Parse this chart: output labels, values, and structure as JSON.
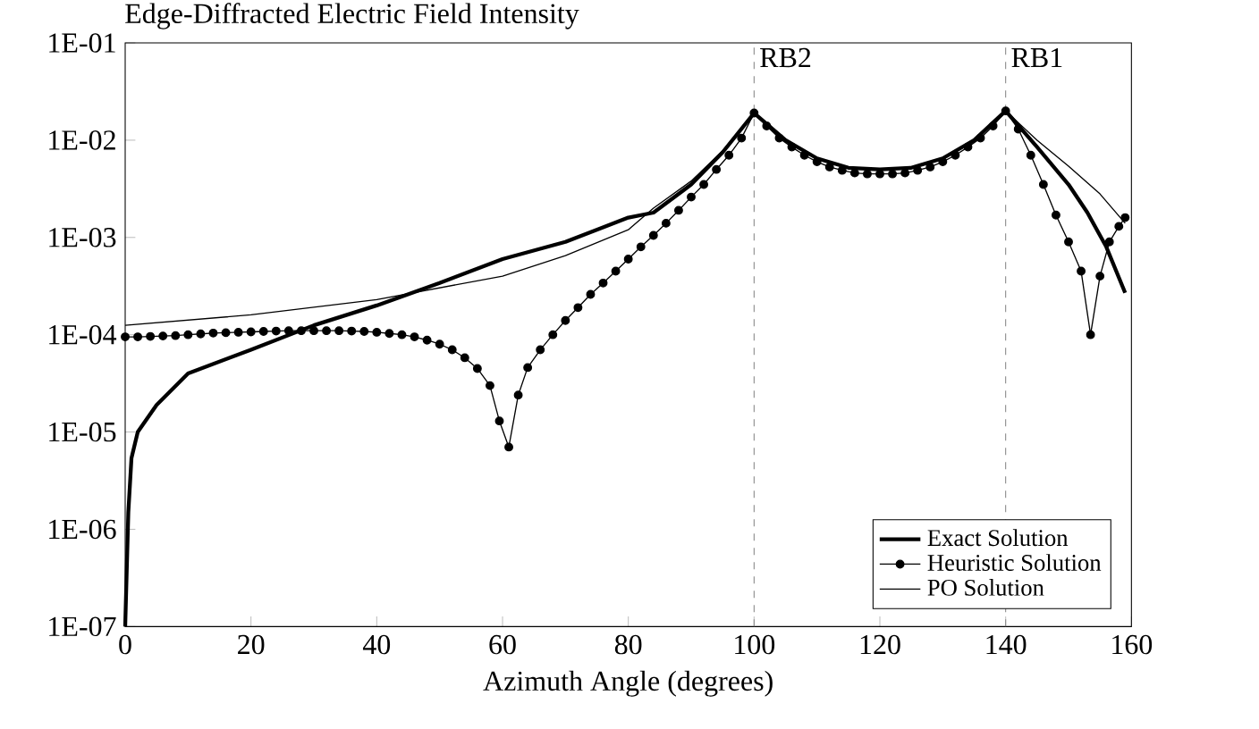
{
  "chart_data": {
    "type": "line",
    "title": "Edge-Diffracted Electric Field Intensity",
    "xlabel": "Azimuth Angle (degrees)",
    "log": "y",
    "xlim": [
      0,
      160
    ],
    "xticks": [
      0,
      20,
      40,
      60,
      80,
      100,
      120,
      140,
      160
    ],
    "ylim": [
      1e-07,
      0.1
    ],
    "yticks": [
      {
        "value": 1e-07,
        "label": "1E-07"
      },
      {
        "value": 1e-06,
        "label": "1E-06"
      },
      {
        "value": 1e-05,
        "label": "1E-05"
      },
      {
        "value": 0.0001,
        "label": "1E-04"
      },
      {
        "value": 0.001,
        "label": "1E-03"
      },
      {
        "value": 0.01,
        "label": "1E-02"
      },
      {
        "value": 0.1,
        "label": "1E-01"
      }
    ],
    "grid": false,
    "legend": "bottom right",
    "line_style": "solid",
    "ref_lines": [
      {
        "axis": "x",
        "value": 100,
        "label": "RB2",
        "color": "#888888",
        "line_style": "dashed"
      },
      {
        "axis": "x",
        "value": 140,
        "label": "RB1",
        "color": "#888888",
        "line_style": "dashed"
      }
    ],
    "series": [
      {
        "name": "Exact Solution",
        "color": "#000000",
        "marker": "none",
        "x": [
          0,
          0.5,
          1,
          2,
          5,
          10,
          20,
          30,
          40,
          50,
          60,
          70,
          80,
          84,
          90,
          95,
          100,
          105,
          110,
          115,
          120,
          125,
          130,
          135,
          140,
          145,
          150,
          153,
          156,
          159
        ],
        "values": [
          1e-07,
          1.5e-06,
          5.4e-06,
          1e-05,
          1.9e-05,
          4e-05,
          7e-05,
          0.000125,
          0.0002,
          0.00034,
          0.0006,
          0.0009,
          0.0016,
          0.0018,
          0.0035,
          0.0075,
          0.019,
          0.01,
          0.0065,
          0.0052,
          0.005,
          0.0052,
          0.0065,
          0.01,
          0.02,
          0.0085,
          0.0035,
          0.0018,
          0.0008,
          0.00027
        ]
      },
      {
        "name": "Heuristic Solution",
        "color": "#000000",
        "marker": "circle",
        "x": [
          0,
          2,
          4,
          6,
          8,
          10,
          12,
          14,
          16,
          18,
          20,
          22,
          24,
          26,
          28,
          30,
          32,
          34,
          36,
          38,
          40,
          42,
          44,
          46,
          48,
          50,
          52,
          54,
          56,
          58,
          59.5,
          61,
          62.5,
          64,
          66,
          68,
          70,
          72,
          74,
          76,
          78,
          80,
          82,
          84,
          86,
          88,
          90,
          92,
          94,
          96,
          98,
          100,
          102,
          104,
          106,
          108,
          110,
          112,
          114,
          116,
          118,
          120,
          122,
          124,
          126,
          128,
          130,
          132,
          134,
          136,
          138,
          140,
          142,
          144,
          146,
          148,
          150,
          152,
          153.5,
          155,
          156.5,
          158,
          159
        ],
        "values": [
          9.5e-05,
          9.5e-05,
          9.6e-05,
          9.7e-05,
          9.8e-05,
          0.0001,
          0.000102,
          0.000104,
          0.000105,
          0.000106,
          0.000107,
          0.000108,
          0.000109,
          0.00011,
          0.00011,
          0.00011,
          0.00011,
          0.00011,
          0.000109,
          0.000108,
          0.000106,
          0.000103,
          0.0001,
          9.5e-05,
          8.8e-05,
          8e-05,
          7e-05,
          5.8e-05,
          4.5e-05,
          3e-05,
          1.3e-05,
          7e-06,
          2.4e-05,
          4.6e-05,
          7e-05,
          0.0001,
          0.00014,
          0.00019,
          0.00026,
          0.00034,
          0.00045,
          0.0006,
          0.0008,
          0.00105,
          0.0014,
          0.0019,
          0.0026,
          0.0035,
          0.005,
          0.007,
          0.0105,
          0.019,
          0.014,
          0.0105,
          0.0085,
          0.007,
          0.006,
          0.0053,
          0.0049,
          0.0046,
          0.0045,
          0.0045,
          0.0045,
          0.0046,
          0.0049,
          0.0053,
          0.006,
          0.007,
          0.0085,
          0.0105,
          0.014,
          0.02,
          0.013,
          0.007,
          0.0035,
          0.0017,
          0.0009,
          0.00045,
          0.0001,
          0.0004,
          0.0009,
          0.0013,
          0.0016
        ]
      },
      {
        "name": "PO Solution",
        "color": "#000000",
        "marker": "none",
        "x": [
          0,
          20,
          40,
          60,
          70,
          80,
          84,
          90,
          95,
          100,
          105,
          110,
          115,
          120,
          125,
          130,
          135,
          140,
          145,
          150,
          155,
          159
        ],
        "values": [
          0.000125,
          0.00016,
          0.00023,
          0.0004,
          0.00065,
          0.0012,
          0.002,
          0.0038,
          0.0078,
          0.019,
          0.01,
          0.0065,
          0.0052,
          0.005,
          0.0052,
          0.0065,
          0.01,
          0.02,
          0.01,
          0.0054,
          0.0028,
          0.0014
        ]
      }
    ]
  }
}
